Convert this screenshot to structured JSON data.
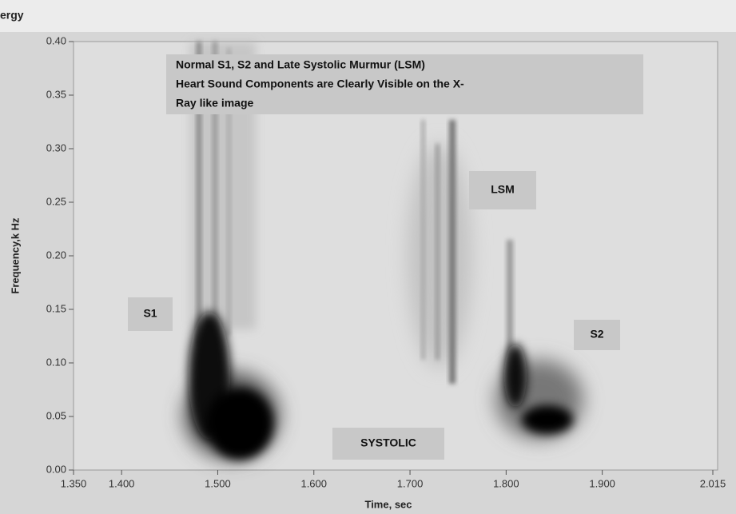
{
  "chart_data": {
    "type": "heatmap",
    "title": "ergy",
    "x_label": "Time, sec",
    "y_label": "Frequency,k Hz",
    "annotation_box": [
      "Normal S1, S2 and  Late Systolic Murmur (LSM)",
      "Heart Sound Components are Clearly Visible on the X-",
      "Ray like image"
    ],
    "labels": [
      "S1",
      "LSM",
      "S2",
      "SYSTOLIC"
    ],
    "xlim": [
      1.35,
      2.015
    ],
    "xticks": [
      {
        "value": 1.35,
        "label": "1.350"
      },
      {
        "value": 1.4,
        "label": "1.400"
      },
      {
        "value": 1.5,
        "label": "1.500"
      },
      {
        "value": 1.6,
        "label": "1.600"
      },
      {
        "value": 1.7,
        "label": "1.700"
      },
      {
        "value": 1.8,
        "label": "1.800"
      },
      {
        "value": 1.9,
        "label": "1.900"
      },
      {
        "value": 2.015,
        "label": "2.015"
      }
    ],
    "ylim": [
      0,
      0.4
    ],
    "yticks": [
      {
        "value": 0,
        "label": "0.00"
      },
      {
        "value": 0.05,
        "label": "0.05"
      },
      {
        "value": 0.1,
        "label": "0.10"
      },
      {
        "value": 0.15,
        "label": "0.15"
      },
      {
        "value": 0.2,
        "label": "0.20"
      },
      {
        "value": 0.25,
        "label": "0.25"
      },
      {
        "value": 0.3,
        "label": "0.30"
      },
      {
        "value": 0.35,
        "label": "0.35"
      },
      {
        "value": 0.4,
        "label": "0.40"
      }
    ]
  }
}
